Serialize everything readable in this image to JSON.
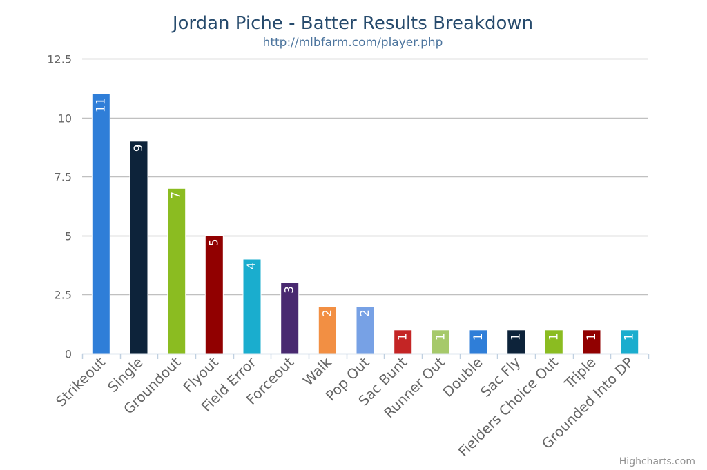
{
  "chart_data": {
    "type": "bar",
    "title": "Jordan Piche - Batter Results Breakdown",
    "subtitle": "http://mlbfarm.com/player.php",
    "xlabel": "",
    "ylabel": "",
    "categories": [
      "Strikeout",
      "Single",
      "Groundout",
      "Flyout",
      "Field Error",
      "Forceout",
      "Walk",
      "Pop Out",
      "Sac Bunt",
      "Runner Out",
      "Double",
      "Sac Fly",
      "Fielders Choice Out",
      "Triple",
      "Grounded Into DP"
    ],
    "values": [
      11,
      9,
      7,
      5,
      4,
      3,
      2,
      2,
      1,
      1,
      1,
      1,
      1,
      1,
      1
    ],
    "colors": [
      "#2f7ed8",
      "#0d233a",
      "#8bbc21",
      "#910000",
      "#1aadce",
      "#492970",
      "#f28f43",
      "#77a1e5",
      "#c42525",
      "#a6c96a",
      "#2f7ed8",
      "#0d233a",
      "#8bbc21",
      "#910000",
      "#1aadce"
    ],
    "yticks": [
      "0",
      "2.5",
      "5",
      "7.5",
      "10",
      "12.5"
    ],
    "ylim": [
      0,
      12.5
    ],
    "grid": true,
    "legend": "none",
    "data_labels": "inside-top-rotated"
  },
  "credits": "Highcharts.com"
}
